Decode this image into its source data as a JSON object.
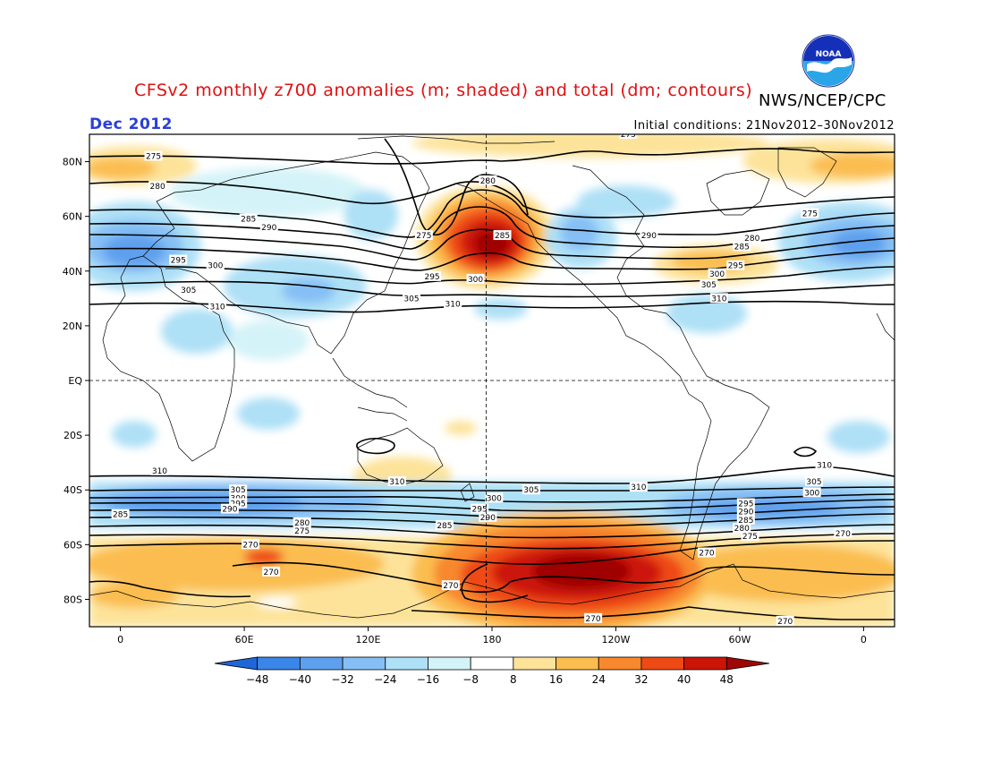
{
  "header": {
    "title": "CFSv2 monthly z700 anomalies (m; shaded) and total (dm; contours)",
    "agency": "NWS/NCEP/CPC",
    "month": "Dec 2012",
    "initial_conditions": "Initial conditions: 21Nov2012–30Nov2012",
    "logo_text": "NOAA"
  },
  "axes": {
    "lat_ticks": [
      {
        "label": "80N",
        "lat": 80
      },
      {
        "label": "60N",
        "lat": 60
      },
      {
        "label": "40N",
        "lat": 40
      },
      {
        "label": "20N",
        "lat": 20
      },
      {
        "label": "EQ",
        "lat": 0
      },
      {
        "label": "20S",
        "lat": -20
      },
      {
        "label": "40S",
        "lat": -40
      },
      {
        "label": "60S",
        "lat": -60
      },
      {
        "label": "80S",
        "lat": -80
      }
    ],
    "lon_ticks": [
      {
        "label": "0",
        "lon": 0
      },
      {
        "label": "60E",
        "lon": 60
      },
      {
        "label": "120E",
        "lon": 120
      },
      {
        "label": "180",
        "lon": 180
      },
      {
        "label": "120W",
        "lon": 240
      },
      {
        "label": "60W",
        "lon": 300
      },
      {
        "label": "0",
        "lon": 360
      }
    ],
    "lon_range": [
      -15,
      375
    ],
    "lat_range": [
      -90,
      90
    ]
  },
  "colorbar": {
    "labels": [
      "−48",
      "−40",
      "−32",
      "−24",
      "−16",
      "−8",
      "8",
      "16",
      "24",
      "32",
      "40",
      "48"
    ],
    "colors": [
      "#1f66d8",
      "#3a86e8",
      "#5ea0ee",
      "#86bff5",
      "#aee0f6",
      "#d4f3f8",
      "#ffffff",
      "#fde39a",
      "#fbbd4f",
      "#f8882d",
      "#ee4a16",
      "#cc1407",
      "#9f0606"
    ]
  },
  "contour_labels": [
    {
      "text": "275",
      "lon": 16,
      "lat": 82
    },
    {
      "text": "280",
      "lon": 18,
      "lat": 71
    },
    {
      "text": "285",
      "lon": 62,
      "lat": 59
    },
    {
      "text": "290",
      "lon": 72,
      "lat": 56
    },
    {
      "text": "295",
      "lon": 28,
      "lat": 44
    },
    {
      "text": "300",
      "lon": 46,
      "lat": 42
    },
    {
      "text": "305",
      "lon": 33,
      "lat": 33
    },
    {
      "text": "310",
      "lon": 47,
      "lat": 27
    },
    {
      "text": "275",
      "lon": 147,
      "lat": 53
    },
    {
      "text": "280",
      "lon": 178,
      "lat": 73
    },
    {
      "text": "285",
      "lon": 185,
      "lat": 53
    },
    {
      "text": "295",
      "lon": 151,
      "lat": 38
    },
    {
      "text": "300",
      "lon": 172,
      "lat": 37
    },
    {
      "text": "305",
      "lon": 141,
      "lat": 30
    },
    {
      "text": "310",
      "lon": 161,
      "lat": 28
    },
    {
      "text": "290",
      "lon": 256,
      "lat": 53
    },
    {
      "text": "275",
      "lon": 334,
      "lat": 61
    },
    {
      "text": "280",
      "lon": 306,
      "lat": 52
    },
    {
      "text": "285",
      "lon": 301,
      "lat": 49
    },
    {
      "text": "295",
      "lon": 298,
      "lat": 42
    },
    {
      "text": "300",
      "lon": 289,
      "lat": 39
    },
    {
      "text": "305",
      "lon": 285,
      "lat": 35
    },
    {
      "text": "310",
      "lon": 290,
      "lat": 30
    },
    {
      "text": "275",
      "lon": 246,
      "lat": 90
    },
    {
      "text": "310",
      "lon": 19,
      "lat": -33
    },
    {
      "text": "305",
      "lon": 57,
      "lat": -40
    },
    {
      "text": "300",
      "lon": 57,
      "lat": -43
    },
    {
      "text": "295",
      "lon": 57,
      "lat": -45
    },
    {
      "text": "290",
      "lon": 53,
      "lat": -47
    },
    {
      "text": "285",
      "lon": 0,
      "lat": -49
    },
    {
      "text": "280",
      "lon": 88,
      "lat": -52
    },
    {
      "text": "275",
      "lon": 88,
      "lat": -55
    },
    {
      "text": "270",
      "lon": 63,
      "lat": -60
    },
    {
      "text": "270",
      "lon": 73,
      "lat": -70
    },
    {
      "text": "310",
      "lon": 134,
      "lat": -37
    },
    {
      "text": "300",
      "lon": 181,
      "lat": -43
    },
    {
      "text": "295",
      "lon": 174,
      "lat": -47
    },
    {
      "text": "290",
      "lon": 178,
      "lat": -50
    },
    {
      "text": "285",
      "lon": 157,
      "lat": -53
    },
    {
      "text": "305",
      "lon": 199,
      "lat": -40
    },
    {
      "text": "310",
      "lon": 251,
      "lat": -39
    },
    {
      "text": "270",
      "lon": 160,
      "lat": -75
    },
    {
      "text": "270",
      "lon": 229,
      "lat": -87
    },
    {
      "text": "270",
      "lon": 284,
      "lat": -63
    },
    {
      "text": "295",
      "lon": 303,
      "lat": -45
    },
    {
      "text": "290",
      "lon": 303,
      "lat": -48
    },
    {
      "text": "285",
      "lon": 303,
      "lat": -51
    },
    {
      "text": "280",
      "lon": 301,
      "lat": -54
    },
    {
      "text": "275",
      "lon": 305,
      "lat": -57
    },
    {
      "text": "310",
      "lon": 341,
      "lat": -31
    },
    {
      "text": "305",
      "lon": 336,
      "lat": -37
    },
    {
      "text": "300",
      "lon": 335,
      "lat": -41
    },
    {
      "text": "270",
      "lon": 350,
      "lat": -56
    },
    {
      "text": "270",
      "lon": 322,
      "lat": -88
    }
  ]
}
